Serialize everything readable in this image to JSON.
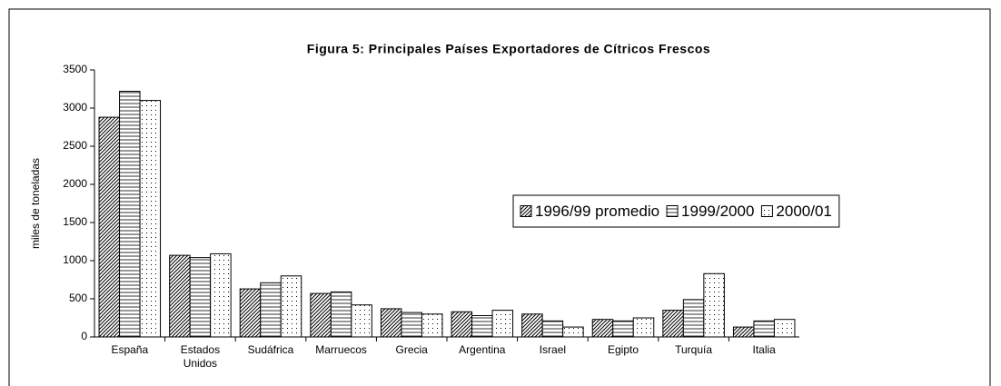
{
  "chart_data": {
    "type": "bar",
    "title": "Figura 5: Principales Países Exportadores de Cítricos Frescos",
    "ylabel": "miles de toneladas",
    "categories": [
      "España",
      "Estados Unidos",
      "Sudáfrica",
      "Marruecos",
      "Grecia",
      "Argentina",
      "Israel",
      "Egipto",
      "Turquía",
      "Italia"
    ],
    "series": [
      {
        "name": "1996/99 promedio",
        "color": "#000000",
        "pattern": "diagonal",
        "values": [
          2880,
          1070,
          630,
          570,
          370,
          330,
          300,
          230,
          350,
          130
        ]
      },
      {
        "name": "1999/2000",
        "color": "#000000",
        "pattern": "horizontal",
        "values": [
          3220,
          1040,
          710,
          590,
          320,
          280,
          210,
          210,
          490,
          210
        ]
      },
      {
        "name": "2000/01",
        "color": "#000000",
        "pattern": "dots",
        "values": [
          3100,
          1090,
          800,
          420,
          300,
          350,
          130,
          250,
          830,
          230
        ]
      }
    ],
    "ylim": [
      0,
      3500
    ],
    "yticks": [
      0,
      500,
      1000,
      1500,
      2000,
      2500,
      3000,
      3500
    ],
    "grid": false
  }
}
